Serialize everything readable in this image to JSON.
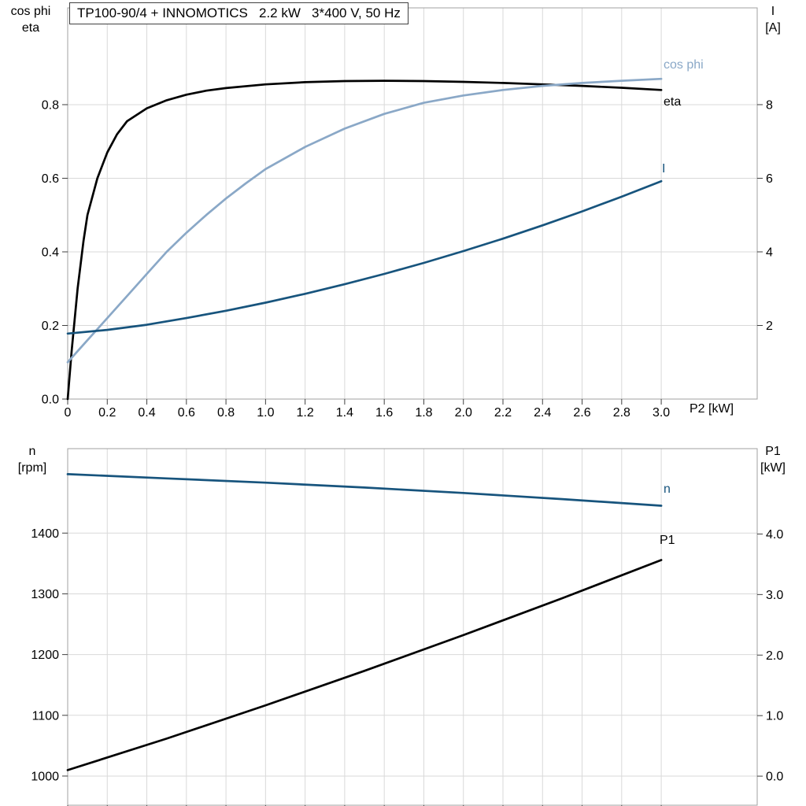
{
  "title_box": {
    "text": "TP100-90/4 + INNOMOTICS   2.2 kW   3*400 V, 50 Hz"
  },
  "labels": {
    "top_left_line1": "cos phi",
    "top_left_line2": "eta",
    "top_right_line1": "I",
    "top_right_line2": "[A]",
    "x_axis": "P2 [kW]",
    "bottom_left_line1": "n",
    "bottom_left_line2": "[rpm]",
    "bottom_right_line1": "P1",
    "bottom_right_line2": "[kW]",
    "curve_cos_phi": "cos phi",
    "curve_eta": "eta",
    "curve_I": "I",
    "curve_n": "n",
    "curve_P1": "P1"
  },
  "colors": {
    "eta": "#000000",
    "cos_phi": "#8aa8c7",
    "current": "#17547d",
    "speed": "#17547d",
    "p1": "#000000",
    "grid": "#d9d9d9",
    "frame": "#a0a0a0",
    "tick": "#404040"
  },
  "chart_data": [
    {
      "type": "line",
      "title": "TP100-90/4 + INNOMOTICS 2.2 kW 3*400 V, 50 Hz",
      "xlabel": "P2 [kW]",
      "xlim": [
        0,
        3.485
      ],
      "grid": true,
      "x_ticks": [
        0,
        0.2,
        0.4,
        0.6,
        0.8,
        1.0,
        1.2,
        1.4,
        1.6,
        1.8,
        2.0,
        2.2,
        2.4,
        2.6,
        2.8,
        3.0
      ],
      "x_tick_labels": [
        "0",
        "0.2",
        "0.4",
        "0.6",
        "0.8",
        "1.0",
        "1.2",
        "1.4",
        "1.6",
        "1.8",
        "2.0",
        "2.2",
        "2.4",
        "2.6",
        "2.8",
        "3.0"
      ],
      "axes": {
        "left": {
          "label": "cos phi / eta",
          "lim": [
            0,
            1.063
          ],
          "ticks": [
            0,
            0.2,
            0.4,
            0.6,
            0.8
          ],
          "tick_labels": [
            "0.0",
            "0.2",
            "0.4",
            "0.6",
            "0.8"
          ]
        },
        "right": {
          "label": "I [A]",
          "lim": [
            0,
            10.63
          ],
          "ticks": [
            2,
            4,
            6,
            8
          ],
          "tick_labels": [
            "2",
            "4",
            "6",
            "8"
          ]
        }
      },
      "series": [
        {
          "name": "eta",
          "axis": "left",
          "color": "#000000",
          "x": [
            0,
            0.02,
            0.05,
            0.08,
            0.1,
            0.15,
            0.2,
            0.25,
            0.3,
            0.4,
            0.5,
            0.6,
            0.7,
            0.8,
            1.0,
            1.2,
            1.4,
            1.6,
            1.8,
            2.0,
            2.2,
            2.4,
            2.6,
            2.8,
            3.0
          ],
          "y": [
            0,
            0.13,
            0.3,
            0.43,
            0.5,
            0.6,
            0.67,
            0.72,
            0.755,
            0.79,
            0.812,
            0.827,
            0.838,
            0.845,
            0.855,
            0.861,
            0.864,
            0.865,
            0.864,
            0.862,
            0.859,
            0.855,
            0.851,
            0.846,
            0.84
          ]
        },
        {
          "name": "cos phi",
          "axis": "left",
          "color": "#8aa8c7",
          "x": [
            0,
            0.1,
            0.2,
            0.3,
            0.4,
            0.5,
            0.6,
            0.7,
            0.8,
            0.9,
            1.0,
            1.2,
            1.4,
            1.6,
            1.8,
            2.0,
            2.2,
            2.4,
            2.6,
            2.8,
            3.0
          ],
          "y": [
            0.1,
            0.16,
            0.22,
            0.28,
            0.34,
            0.4,
            0.452,
            0.5,
            0.545,
            0.586,
            0.625,
            0.685,
            0.735,
            0.775,
            0.805,
            0.825,
            0.84,
            0.851,
            0.859,
            0.865,
            0.87
          ]
        },
        {
          "name": "I",
          "axis": "right",
          "color": "#17547d",
          "x": [
            0,
            0.2,
            0.4,
            0.6,
            0.8,
            1.0,
            1.2,
            1.4,
            1.6,
            1.8,
            2.0,
            2.2,
            2.4,
            2.6,
            2.8,
            3.0
          ],
          "y": [
            1.78,
            1.88,
            2.02,
            2.2,
            2.4,
            2.62,
            2.86,
            3.12,
            3.4,
            3.7,
            4.02,
            4.36,
            4.72,
            5.1,
            5.5,
            5.92
          ]
        }
      ]
    },
    {
      "type": "line",
      "title": "",
      "xlabel": "",
      "xlim": [
        0,
        3.485
      ],
      "grid": true,
      "x_ticks": [
        0,
        0.2,
        0.4,
        0.6,
        0.8,
        1.0,
        1.2,
        1.4,
        1.6,
        1.8,
        2.0,
        2.2,
        2.4,
        2.6,
        2.8,
        3.0
      ],
      "x_tick_labels": [],
      "axes": {
        "left": {
          "label": "n [rpm]",
          "lim": [
            952,
            1539
          ],
          "ticks": [
            1000,
            1100,
            1200,
            1300,
            1400
          ],
          "tick_labels": [
            "1000",
            "1100",
            "1200",
            "1300",
            "1400"
          ]
        },
        "right": {
          "label": "P1 [kW]",
          "lim": [
            -0.48,
            5.41
          ],
          "ticks": [
            0,
            1,
            2,
            3,
            4
          ],
          "tick_labels": [
            "0.0",
            "1.0",
            "2.0",
            "3.0",
            "4.0"
          ]
        }
      },
      "series": [
        {
          "name": "n",
          "axis": "left",
          "color": "#17547d",
          "x": [
            0,
            0.5,
            1.0,
            1.5,
            2.0,
            2.5,
            3.0
          ],
          "y": [
            1497,
            1490,
            1483,
            1475,
            1466,
            1456,
            1445
          ]
        },
        {
          "name": "P1",
          "axis": "right",
          "color": "#000000",
          "x": [
            0,
            0.5,
            1.0,
            1.5,
            2.0,
            2.5,
            3.0
          ],
          "y": [
            0.1,
            0.62,
            1.17,
            1.74,
            2.33,
            2.94,
            3.57
          ]
        }
      ]
    }
  ]
}
